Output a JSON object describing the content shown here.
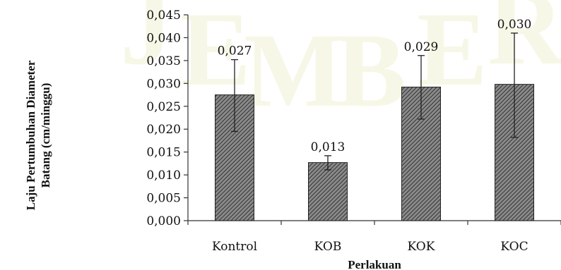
{
  "chart_data": {
    "type": "bar",
    "title": "",
    "xlabel": "Perlakuan",
    "ylabel_lines": [
      "Laju Pertumbuhan Diameter",
      "Batang (cm/minggu)"
    ],
    "categories": [
      "Kontrol",
      "KOB",
      "KOK",
      "KOC"
    ],
    "values": [
      0.0275,
      0.0127,
      0.0292,
      0.0298
    ],
    "data_labels": [
      "0,027",
      "0,013",
      "0,029",
      "0,030"
    ],
    "error_bars": [
      {
        "lower": 0.0195,
        "upper": 0.0352
      },
      {
        "lower": 0.0111,
        "upper": 0.0142
      },
      {
        "lower": 0.0222,
        "upper": 0.0361
      },
      {
        "lower": 0.0182,
        "upper": 0.041
      }
    ],
    "ylim": [
      0,
      0.045
    ],
    "yticks": [
      "0,000",
      "0,005",
      "0,010",
      "0,015",
      "0,020",
      "0,025",
      "0,030",
      "0,035",
      "0,040",
      "0,045"
    ],
    "grid": false,
    "legend": "none",
    "bar_pattern": "diagonal-hatch",
    "colors": {
      "bar_fill": "#7e7e7e",
      "bar_stripe": "#3a3a3a",
      "bar_stroke": "#222222",
      "axis": "#333333",
      "text": "#111111"
    },
    "watermark_letters": [
      "J",
      "E",
      "M",
      "B",
      "E",
      "R"
    ]
  }
}
